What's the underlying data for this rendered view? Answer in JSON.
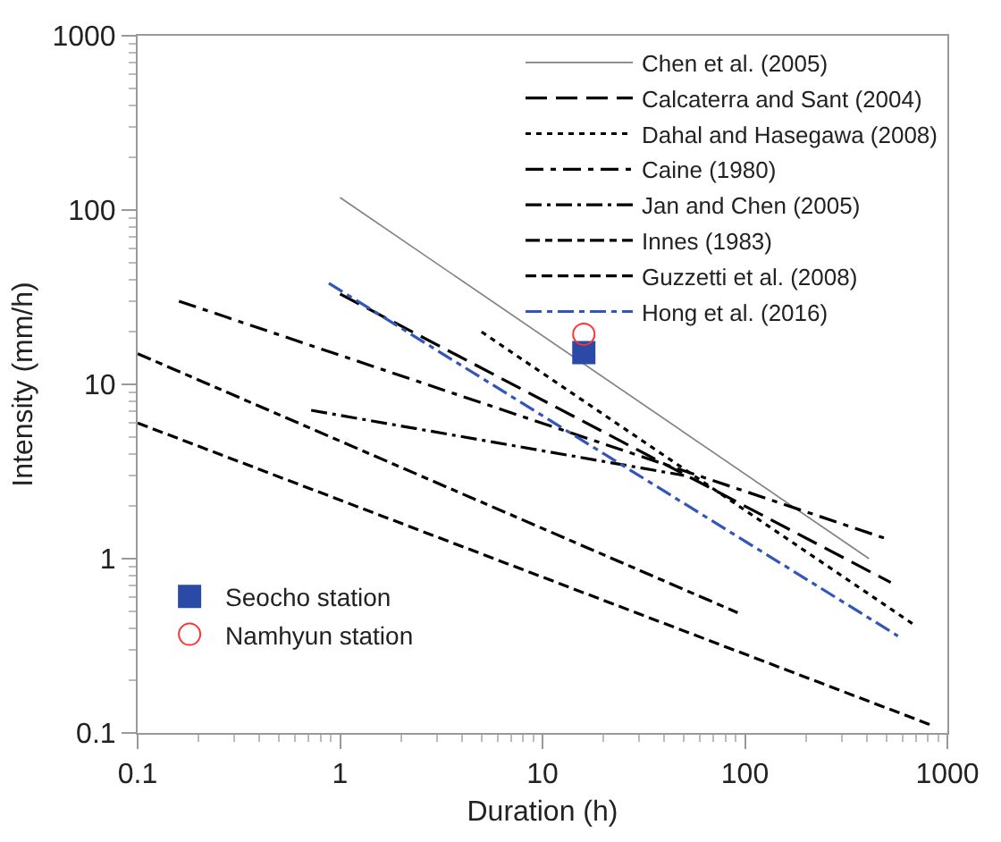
{
  "chart_data": {
    "type": "line",
    "xlabel": "Duration (h)",
    "ylabel": "Intensity (mm/h)",
    "log": "xy",
    "xlim": [
      0.1,
      1000
    ],
    "xticks": [
      0.1,
      1,
      10,
      100,
      1000
    ],
    "ylim": [
      0.1,
      1000
    ],
    "yticks": [
      0.1,
      1,
      10,
      100,
      1000
    ],
    "grid": false,
    "legend": "top right",
    "marker": "none",
    "series": [
      {
        "name": "Chen et al. (2005)",
        "color": "#808080",
        "line_style": "solid",
        "x": [
          1,
          410
        ],
        "values": [
          118,
          1
        ]
      },
      {
        "name": "Calcaterra and Sant (2004)",
        "color": "#000000",
        "line_style": "dashed",
        "x": [
          1,
          525
        ],
        "values": [
          33,
          0.73
        ]
      },
      {
        "name": "Dahal and Hasegawa (2008)",
        "color": "#000000",
        "line_style": "dotted",
        "x": [
          5,
          680
        ],
        "values": [
          20,
          0.42
        ]
      },
      {
        "name": "Caine (1980)",
        "color": "#000000",
        "line_style": "dashed",
        "x": [
          0.16,
          500
        ],
        "values": [
          30,
          1.3
        ]
      },
      {
        "name": "Jan and Chen (2005)",
        "color": "#000000",
        "line_style": "dashed",
        "x": [
          0.72,
          50
        ],
        "values": [
          7.1,
          3
        ]
      },
      {
        "name": "Innes (1983)",
        "color": "#000000",
        "line_style": "dashed",
        "x": [
          0.1,
          92
        ],
        "values": [
          15,
          0.49
        ]
      },
      {
        "name": "Guzzetti et al. (2008)",
        "color": "#000000",
        "line_style": "dashed",
        "x": [
          0.1,
          850
        ],
        "values": [
          6,
          0.11
        ]
      },
      {
        "name": "Hong et al. (2016)",
        "color": "#3355bb",
        "line_style": "dashdot",
        "x": [
          0.88,
          570
        ],
        "values": [
          38,
          0.36
        ]
      },
      {
        "name": "Seocho station",
        "type": "scatter",
        "marker": "square",
        "color": "#2b4aa6",
        "x": [
          16
        ],
        "values": [
          15.2
        ]
      },
      {
        "name": "Namhyun station",
        "type": "scatter",
        "marker": "circle-open",
        "color": "#ff3333",
        "x": [
          16
        ],
        "values": [
          19.4
        ]
      }
    ]
  }
}
